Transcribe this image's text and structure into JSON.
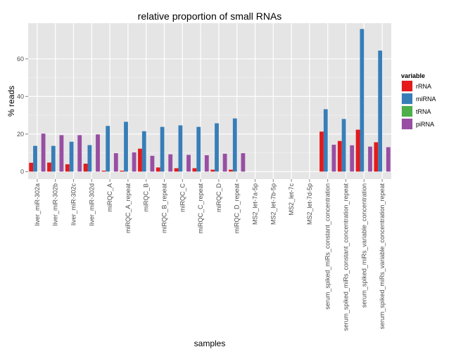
{
  "chart_data": {
    "type": "bar",
    "title": "relative proportion of small RNAs",
    "xlabel": "samples",
    "ylabel": "% reads",
    "ylim": [
      -4,
      79
    ],
    "yticks": [
      0,
      20,
      40,
      60
    ],
    "grid": true,
    "legend": {
      "title": "variable",
      "position": "right"
    },
    "categories": [
      "liver_miR-302a",
      "liver_miR-302b",
      "liver_miR-302c",
      "liver_miR-302d",
      "miRQC_A",
      "miRQC_A_repeat",
      "miRQC_B",
      "miRQC_B_repeat",
      "miRQC_C",
      "miRQC_C_repeat",
      "miRQC_D",
      "miRQC_D_repeat",
      "MS2_let-7a-5p",
      "MS2_let-7b-5p",
      "MS2_let-7c",
      "MS2_let-7d-5p",
      "serum_spiked_miRs_constant_concentration",
      "serum_spiked_miRs_constant_concentration_repeat",
      "serum_spiked_miRs_variable_concentration",
      "serum_spiked_miRs_variable_concentration_repeat"
    ],
    "series": [
      {
        "name": "rRNA",
        "color": "#E41A1C",
        "values": [
          4.7,
          4.8,
          3.9,
          4.2,
          0.5,
          0.5,
          12.2,
          2.2,
          1.8,
          1.8,
          1.0,
          1.0,
          0,
          0,
          0,
          0,
          21.3,
          16.3,
          22.3,
          15.6
        ]
      },
      {
        "name": "miRNA",
        "color": "#377EB8",
        "values": [
          13.7,
          13.7,
          15.9,
          14.1,
          24.3,
          26.5,
          21.5,
          23.8,
          24.6,
          23.8,
          25.7,
          28.3,
          0,
          0,
          0,
          0,
          33.2,
          28.0,
          75.9,
          64.4
        ]
      },
      {
        "name": "tRNA",
        "color": "#4DAF4A",
        "values": [
          0,
          0,
          0,
          0,
          0,
          0,
          0,
          0,
          0,
          0,
          0,
          0,
          0,
          0,
          0,
          0,
          0,
          0,
          0,
          0
        ]
      },
      {
        "name": "piRNA",
        "color": "#984EA3",
        "values": [
          20.2,
          19.4,
          19.4,
          19.8,
          9.8,
          10.2,
          8.4,
          9.2,
          8.9,
          8.7,
          9.5,
          9.8,
          0,
          0,
          0,
          0,
          14.3,
          14.0,
          13.3,
          13.0
        ]
      }
    ]
  }
}
